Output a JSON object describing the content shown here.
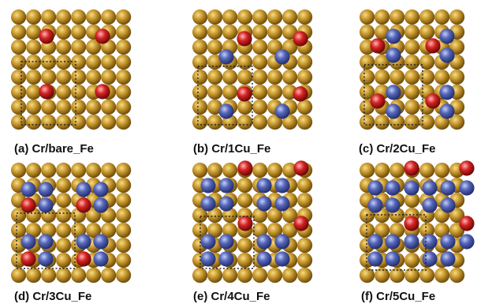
{
  "colors": {
    "fe_atom": "#b88a1c",
    "cu_atom": "#5566b8",
    "cr_atom": "#d42424",
    "cell_outline": "#222222"
  },
  "panels": [
    {
      "caption": "(a) Cr/bare_Fe"
    },
    {
      "caption": "(b) Cr/1Cu_Fe"
    },
    {
      "caption": "(c) Cr/2Cu_Fe"
    },
    {
      "caption": "(d) Cr/3Cu_Fe"
    },
    {
      "caption": "(e) Cr/4Cu_Fe"
    },
    {
      "caption": "(f) Cr/5Cu_Fe"
    }
  ]
}
